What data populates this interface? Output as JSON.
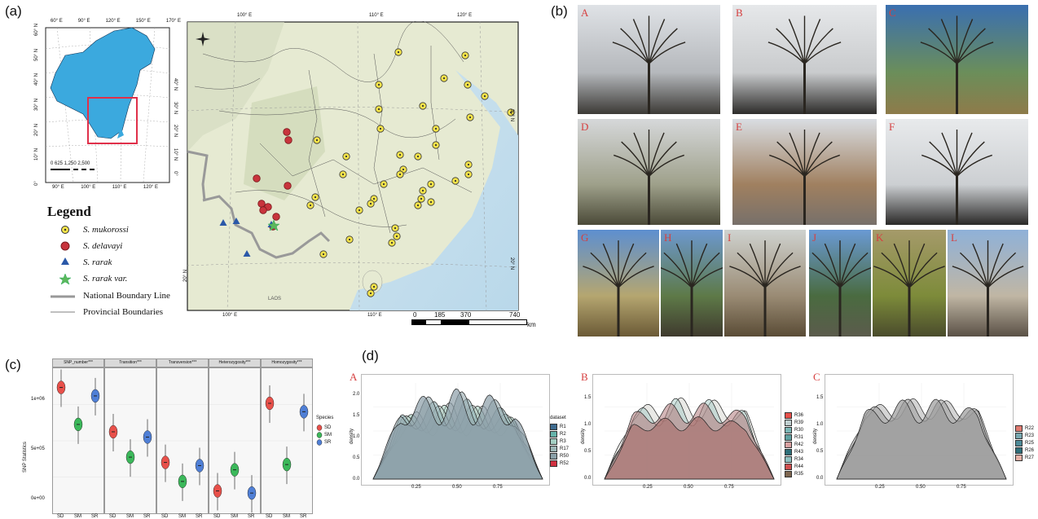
{
  "panel_labels": {
    "a": "(a)",
    "b": "(b)",
    "c": "(c)",
    "d": "(d)"
  },
  "inset_map": {
    "top_ticks": [
      "60° E",
      "90° E",
      "120° E",
      "150° E",
      "170° E"
    ],
    "bottom_ticks": [
      "90° E",
      "100° E",
      "110° E",
      "120° E"
    ],
    "left_ticks": [
      "60° N",
      "50° N",
      "40° N",
      "30° N",
      "20° N",
      "10° N",
      "0°"
    ],
    "right_ticks": [
      "40° N",
      "30° N",
      "20° N",
      "10° N",
      "0°"
    ],
    "scale": "0 625 1,250 2,500"
  },
  "main_map": {
    "top_ticks": [
      "100° E",
      "110° E",
      "120° E"
    ],
    "bottom_ticks": [
      "100° E",
      "110° E"
    ],
    "right_ticks": [
      "30° N",
      "20° N"
    ],
    "left_ticks": [
      "20° N"
    ],
    "scale_numbers": [
      "0",
      "185",
      "370",
      "740"
    ],
    "scale_unit": "km",
    "laos": "LAOS"
  },
  "legend": {
    "title": "Legend",
    "items": [
      {
        "label": "S. mukorossi",
        "symbol": "yellow-dot"
      },
      {
        "label": "S. delavayi",
        "symbol": "red-hex"
      },
      {
        "label": "S. rarak",
        "symbol": "blue-triangle"
      },
      {
        "label": "S. rarak var.",
        "symbol": "green-star"
      },
      {
        "label": "National Boundary Line",
        "symbol": "thick-line"
      },
      {
        "label": "Provincial Boundaries",
        "symbol": "thin-line"
      }
    ]
  },
  "photos": [
    {
      "letter": "A"
    },
    {
      "letter": "B"
    },
    {
      "letter": "C"
    },
    {
      "letter": "D"
    },
    {
      "letter": "E"
    },
    {
      "letter": "F"
    },
    {
      "letter": "G"
    },
    {
      "letter": "H"
    },
    {
      "letter": "I"
    },
    {
      "letter": "J"
    },
    {
      "letter": "K"
    },
    {
      "letter": "L"
    }
  ],
  "colors": {
    "sd": "#e8504a",
    "sm": "#3bb85a",
    "sr": "#4f7fd6",
    "china": "#3ba9de",
    "map_bg": "#e9ecd9"
  },
  "chart_data": [
    {
      "type": "violin",
      "ylabel": "SNP Statistics",
      "yticks": [
        "1e+06",
        "5e+05",
        "0e+00"
      ],
      "facets": [
        "SNP_number***",
        "Transition***",
        "Transversion***",
        "Heterozygosity***",
        "Homozygosity***"
      ],
      "categories": [
        "SD",
        "SM",
        "SR"
      ],
      "legend_title": "Species",
      "legend": [
        "SD",
        "SM",
        "SR"
      ],
      "series": [
        {
          "name": "SNP_number***",
          "values": [
            1130000,
            780000,
            1050000
          ]
        },
        {
          "name": "Transition***",
          "values": [
            710000,
            470000,
            660000
          ]
        },
        {
          "name": "Transversion***",
          "values": [
            420000,
            240000,
            390000
          ]
        },
        {
          "name": "Heterozygosity***",
          "values": [
            150000,
            350000,
            130000
          ]
        },
        {
          "name": "Homozygosity***",
          "values": [
            980000,
            400000,
            900000
          ]
        }
      ]
    },
    {
      "type": "area",
      "panel": "A",
      "ylabel": "density",
      "yticks": [
        "2.0",
        "1.5",
        "1.0",
        "0.5",
        "0.0"
      ],
      "xticks": [
        "0.25",
        "0.50",
        "0.75"
      ],
      "legend_title": "dataset",
      "legend": [
        "R1",
        "R2",
        "R3",
        "R17",
        "R50",
        "R52"
      ]
    },
    {
      "type": "area",
      "panel": "B",
      "ylabel": "density",
      "yticks": [
        "1.5",
        "1.0",
        "0.5",
        "0.0"
      ],
      "xticks": [
        "0.25",
        "0.50",
        "0.75"
      ],
      "legend": [
        "R36",
        "R39",
        "R30",
        "R31",
        "R42",
        "R43",
        "R34",
        "R44",
        "R35"
      ]
    },
    {
      "type": "area",
      "panel": "C",
      "ylabel": "density",
      "yticks": [
        "1.5",
        "1.0",
        "0.5",
        "0.0"
      ],
      "xticks": [
        "0.25",
        "0.50",
        "0.75"
      ],
      "legend": [
        "R22",
        "R23",
        "R25",
        "R26",
        "R27"
      ]
    }
  ]
}
